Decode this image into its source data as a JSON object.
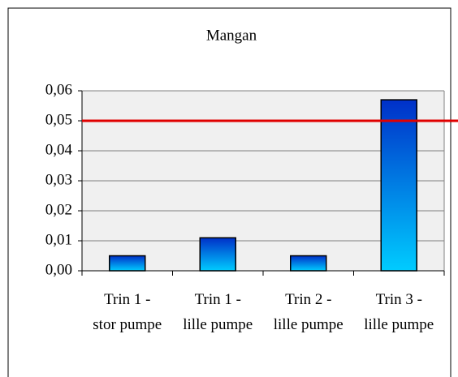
{
  "chart_data": {
    "type": "bar",
    "title": "Mangan",
    "categories": [
      "Trin 1 - stor pumpe",
      "Trin 1 - lille pumpe",
      "Trin 2 - lille pumpe",
      "Trin 3 - lille pumpe"
    ],
    "values": [
      0.005,
      0.011,
      0.005,
      0.057
    ],
    "color": "#0050e0",
    "threshold": 0.05,
    "threshold_color": "#e00000",
    "ylim": [
      0,
      0.06
    ],
    "yticks": [
      {
        "value": 0,
        "label": "0,00"
      },
      {
        "value": 0.01,
        "label": "0,01"
      },
      {
        "value": 0.02,
        "label": "0,02"
      },
      {
        "value": 0.03,
        "label": "0,03"
      },
      {
        "value": 0.04,
        "label": "0,04"
      },
      {
        "value": 0.05,
        "label": "0,05"
      },
      {
        "value": 0.06,
        "label": "0,06"
      }
    ],
    "grid": true
  }
}
